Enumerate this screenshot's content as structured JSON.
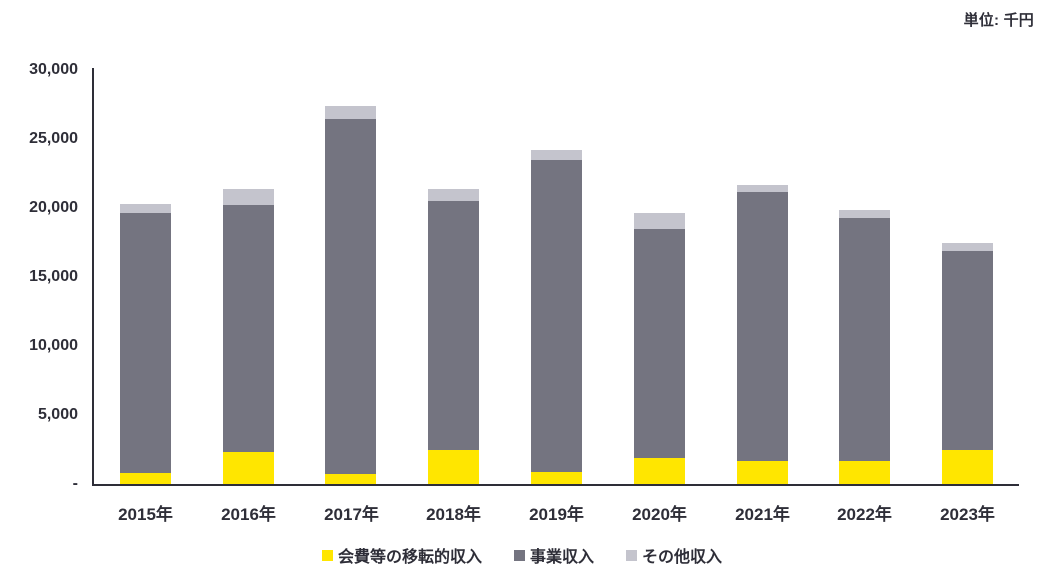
{
  "unit_label": "単位: 千円",
  "colors": {
    "text": "#2e2e38",
    "axis": "#2e2e38",
    "yellow": "#ffe600",
    "dark_gray": "#747480",
    "light_gray": "#c4c4cd",
    "background": "#ffffff"
  },
  "chart_data": {
    "type": "bar",
    "stacked": true,
    "title": "",
    "unit": "単位: 千円",
    "categories": [
      "2015年",
      "2016年",
      "2017年",
      "2018年",
      "2019年",
      "2020年",
      "2021年",
      "2022年",
      "2023年"
    ],
    "series": [
      {
        "name": "会費等の移転的収入",
        "color": "#ffe600",
        "values": [
          800,
          2300,
          750,
          2500,
          900,
          1900,
          1650,
          1650,
          2450
        ]
      },
      {
        "name": "事業収入",
        "color": "#747480",
        "values": [
          18850,
          17900,
          25700,
          18000,
          22600,
          16550,
          19500,
          17600,
          14450
        ]
      },
      {
        "name": "その他収入",
        "color": "#c4c4cd",
        "values": [
          650,
          1150,
          950,
          900,
          700,
          1200,
          500,
          600,
          550
        ]
      }
    ],
    "totals": [
      20300,
      21350,
      27400,
      21400,
      24200,
      19650,
      21650,
      19850,
      17450
    ],
    "ylim": [
      0,
      30000
    ],
    "ytick_step": 5000,
    "ytick_labels": [
      "-",
      "5,000",
      "10,000",
      "15,000",
      "20,000",
      "25,000",
      "30,000"
    ],
    "grid": false,
    "legend_position": "bottom"
  }
}
